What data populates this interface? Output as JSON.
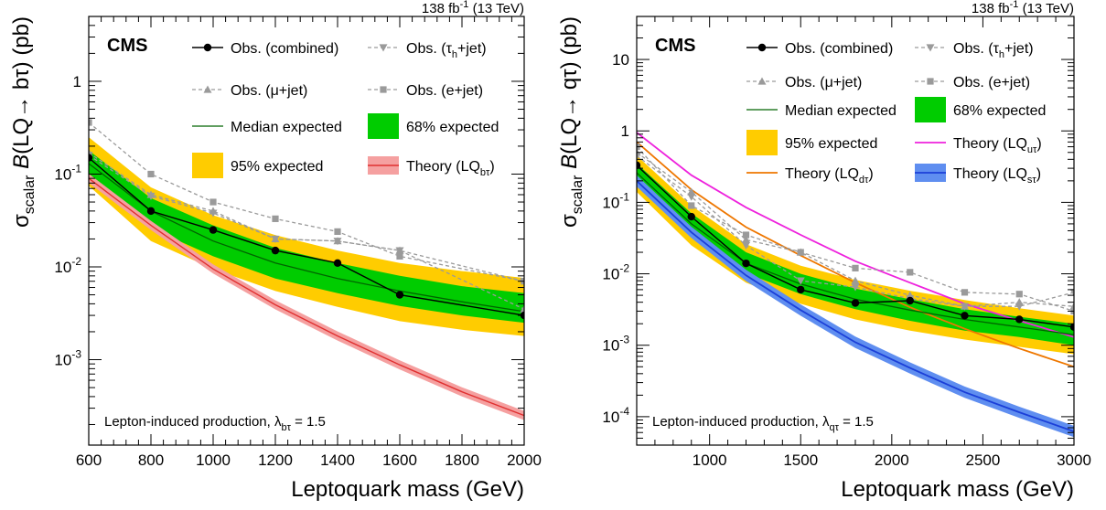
{
  "chart_data": [
    {
      "type": "line",
      "cms_label": "CMS",
      "lumi_text": "138 fb",
      "lumi_sup": "-1",
      "lumi_energy": " (13 TeV)",
      "xlabel": "Leptoquark mass (GeV)",
      "ylabel_sigma": "σ",
      "ylabel_sub": "scalar",
      "ylabel_B": "B",
      "ylabel_rest": "(LQ→ bτ) (pb)",
      "annotation_text": "Lepton-induced production, λ",
      "annotation_sub": "bτ",
      "annotation_val": " = 1.5",
      "x_range": [
        600,
        2000
      ],
      "y_range": [
        0.00012,
        5
      ],
      "y_scale": "log",
      "x_ticks": [
        600,
        800,
        1000,
        1200,
        1400,
        1600,
        1800,
        2000
      ],
      "y_ticks": [
        {
          "value": 1,
          "base": "1",
          "exp": ""
        },
        {
          "value": 0.1,
          "base": "10",
          "exp": "-1"
        },
        {
          "value": 0.01,
          "base": "10",
          "exp": "-2"
        },
        {
          "value": 0.001,
          "base": "10",
          "exp": "-3"
        }
      ],
      "legend": [
        {
          "key": "obs_combined",
          "label": "Obs. (combined)"
        },
        {
          "key": "obs_tau",
          "label": "Obs. (τ",
          "sub": "h",
          "tail": "+jet)"
        },
        {
          "key": "obs_mu",
          "label": "Obs. (μ+jet)"
        },
        {
          "key": "obs_e",
          "label": "Obs. (e+jet)"
        },
        {
          "key": "median",
          "label": "Median expected"
        },
        {
          "key": "band68",
          "label": "68% expected"
        },
        {
          "key": "band95",
          "label": "95% expected"
        },
        {
          "key": "theory_b",
          "label": "Theory (LQ",
          "sub": "bτ",
          "tail": ")"
        }
      ],
      "series": [
        {
          "key": "obs_combined",
          "name": "Obs. (combined)",
          "x": [
            600,
            800,
            1000,
            1200,
            1400,
            1600,
            2000
          ],
          "y": [
            0.15,
            0.04,
            0.025,
            0.015,
            0.011,
            0.005,
            0.003
          ]
        },
        {
          "key": "obs_tau",
          "name": "Obs. (τh+jet)",
          "x": [
            600,
            800,
            1000,
            1200,
            1400,
            1600,
            2000
          ],
          "y": [
            0.16,
            0.058,
            0.038,
            0.02,
            0.019,
            0.015,
            0.007
          ]
        },
        {
          "key": "obs_mu",
          "name": "Obs. (μ+jet)",
          "x": [
            600,
            800,
            1000,
            1200,
            1400,
            1600,
            2000
          ],
          "y": [
            0.17,
            0.06,
            0.04,
            0.02,
            0.019,
            0.015,
            0.0035
          ]
        },
        {
          "key": "obs_e",
          "name": "Obs. (e+jet)",
          "x": [
            600,
            800,
            1000,
            1200,
            1400,
            1600,
            2000
          ],
          "y": [
            0.36,
            0.1,
            0.05,
            0.033,
            0.024,
            0.013,
            0.007
          ]
        },
        {
          "key": "median",
          "name": "Median expected",
          "x": [
            600,
            800,
            1000,
            1200,
            1400,
            1600,
            1800,
            2000
          ],
          "y": [
            0.13,
            0.04,
            0.019,
            0.011,
            0.0075,
            0.0055,
            0.0042,
            0.0033
          ]
        },
        {
          "key": "theory_b",
          "name": "Theory (LQbτ)",
          "x": [
            600,
            800,
            1000,
            1200,
            1400,
            1600,
            1800,
            2000
          ],
          "y": [
            0.09,
            0.028,
            0.0095,
            0.0039,
            0.0018,
            0.00088,
            0.00045,
            0.00025
          ]
        }
      ],
      "bands": [
        {
          "key": "band95",
          "x": [
            600,
            800,
            1000,
            1200,
            1400,
            1600,
            1800,
            2000
          ],
          "low": [
            0.075,
            0.019,
            0.0095,
            0.0055,
            0.0037,
            0.0026,
            0.0021,
            0.0018
          ],
          "high": [
            0.25,
            0.072,
            0.036,
            0.022,
            0.015,
            0.011,
            0.009,
            0.0076
          ]
        },
        {
          "key": "band68",
          "x": [
            600,
            800,
            1000,
            1200,
            1400,
            1600,
            1800,
            2000
          ],
          "low": [
            0.095,
            0.026,
            0.013,
            0.0075,
            0.0052,
            0.0038,
            0.003,
            0.0025
          ],
          "high": [
            0.18,
            0.055,
            0.028,
            0.016,
            0.011,
            0.008,
            0.0062,
            0.0052
          ]
        }
      ]
    },
    {
      "type": "line",
      "cms_label": "CMS",
      "lumi_text": "138 fb",
      "lumi_sup": "-1",
      "lumi_energy": " (13 TeV)",
      "xlabel": "Leptoquark mass (GeV)",
      "ylabel_sigma": "σ",
      "ylabel_sub": "scalar",
      "ylabel_B": "B",
      "ylabel_rest": "(LQ→ qτ) (pb)",
      "annotation_text": "Lepton-induced production, λ",
      "annotation_sub": "qτ",
      "annotation_val": " = 1.5",
      "x_range": [
        600,
        3000
      ],
      "y_range": [
        4e-05,
        40
      ],
      "y_scale": "log",
      "x_ticks": [
        1000,
        1500,
        2000,
        2500,
        3000
      ],
      "y_ticks": [
        {
          "value": 10,
          "base": "10",
          "exp": ""
        },
        {
          "value": 1,
          "base": "1",
          "exp": ""
        },
        {
          "value": 0.1,
          "base": "10",
          "exp": "-1"
        },
        {
          "value": 0.01,
          "base": "10",
          "exp": "-2"
        },
        {
          "value": 0.001,
          "base": "10",
          "exp": "-3"
        },
        {
          "value": 0.0001,
          "base": "10",
          "exp": "-4"
        }
      ],
      "legend": [
        {
          "key": "obs_combined",
          "label": "Obs. (combined)"
        },
        {
          "key": "obs_tau",
          "label": "Obs. (τ",
          "sub": "h",
          "tail": "+jet)"
        },
        {
          "key": "obs_mu",
          "label": "Obs. (μ+jet)"
        },
        {
          "key": "obs_e",
          "label": "Obs. (e+jet)"
        },
        {
          "key": "median",
          "label": "Median expected"
        },
        {
          "key": "band68",
          "label": "68% expected"
        },
        {
          "key": "band95",
          "label": "95% expected"
        },
        {
          "key": "theory_u",
          "label": "Theory (LQ",
          "sub": "uτ",
          "tail": ")"
        },
        {
          "key": "theory_d",
          "label": "Theory (LQ",
          "sub": "dτ",
          "tail": ")"
        },
        {
          "key": "theory_s",
          "label": "Theory (LQ",
          "sub": "sτ",
          "tail": ")"
        }
      ],
      "series": [
        {
          "key": "obs_combined",
          "name": "Obs. (combined)",
          "x": [
            600,
            900,
            1200,
            1500,
            1800,
            2100,
            2400,
            2700,
            3000
          ],
          "y": [
            0.33,
            0.063,
            0.014,
            0.006,
            0.0039,
            0.0042,
            0.0026,
            0.0023,
            0.0018
          ]
        },
        {
          "key": "obs_tau",
          "name": "Obs. (τh+jet)",
          "x": [
            600,
            900,
            1200,
            1500,
            1800,
            2100,
            2400,
            2700,
            3000
          ],
          "y": [
            0.45,
            0.12,
            0.025,
            0.008,
            0.0065,
            0.0045,
            0.0035,
            0.0035,
            0.0055
          ]
        },
        {
          "key": "obs_mu",
          "name": "Obs. (μ+jet)",
          "x": [
            600,
            900,
            1200,
            1500,
            1800,
            2100,
            2400,
            2700,
            3000
          ],
          "y": [
            0.5,
            0.14,
            0.03,
            0.02,
            0.008,
            0.005,
            0.0035,
            0.004,
            0.0035
          ]
        },
        {
          "key": "obs_e",
          "name": "Obs. (e+jet)",
          "x": [
            600,
            900,
            1200,
            1500,
            1800,
            2100,
            2400,
            2700,
            3000
          ],
          "y": [
            0.6,
            0.09,
            0.035,
            0.02,
            0.012,
            0.0105,
            0.0055,
            0.0052,
            0.003
          ]
        },
        {
          "key": "median",
          "name": "Median expected",
          "x": [
            600,
            900,
            1200,
            1500,
            1800,
            2100,
            2400,
            2700,
            3000
          ],
          "y": [
            0.26,
            0.05,
            0.014,
            0.0072,
            0.0044,
            0.0031,
            0.0023,
            0.0018,
            0.0014
          ]
        },
        {
          "key": "theory_u",
          "name": "Theory (LQuτ)",
          "x": [
            600,
            900,
            1200,
            1500,
            1800,
            2100,
            2400,
            2700,
            3000
          ],
          "y": [
            0.95,
            0.24,
            0.085,
            0.035,
            0.015,
            0.0075,
            0.0038,
            0.0022,
            0.0013
          ]
        },
        {
          "key": "theory_d",
          "name": "Theory (LQdτ)",
          "x": [
            600,
            900,
            1200,
            1500,
            1800,
            2100,
            2400,
            2700,
            3000
          ],
          "y": [
            0.7,
            0.15,
            0.045,
            0.018,
            0.0075,
            0.0034,
            0.0017,
            0.0009,
            0.0005
          ]
        },
        {
          "key": "theory_s",
          "name": "Theory (LQsτ)",
          "x": [
            600,
            900,
            1200,
            1500,
            1800,
            2100,
            2400,
            2700,
            3000
          ],
          "y": [
            0.2,
            0.038,
            0.0095,
            0.0031,
            0.0011,
            0.00048,
            0.00022,
            0.000115,
            6.2e-05
          ]
        }
      ],
      "bands": [
        {
          "key": "band95",
          "x": [
            600,
            900,
            1200,
            1500,
            1800,
            2100,
            2400,
            2700,
            3000
          ],
          "low": [
            0.14,
            0.025,
            0.0075,
            0.0038,
            0.0023,
            0.0016,
            0.0012,
            0.00095,
            0.00075
          ],
          "high": [
            0.45,
            0.09,
            0.026,
            0.013,
            0.0082,
            0.0058,
            0.0043,
            0.0033,
            0.0026
          ]
        },
        {
          "key": "band68",
          "x": [
            600,
            900,
            1200,
            1500,
            1800,
            2100,
            2400,
            2700,
            3000
          ],
          "low": [
            0.19,
            0.034,
            0.0102,
            0.0052,
            0.0032,
            0.0022,
            0.0016,
            0.0013,
            0.001
          ],
          "high": [
            0.35,
            0.07,
            0.02,
            0.01,
            0.0062,
            0.0044,
            0.0032,
            0.0025,
            0.002
          ]
        }
      ]
    }
  ]
}
